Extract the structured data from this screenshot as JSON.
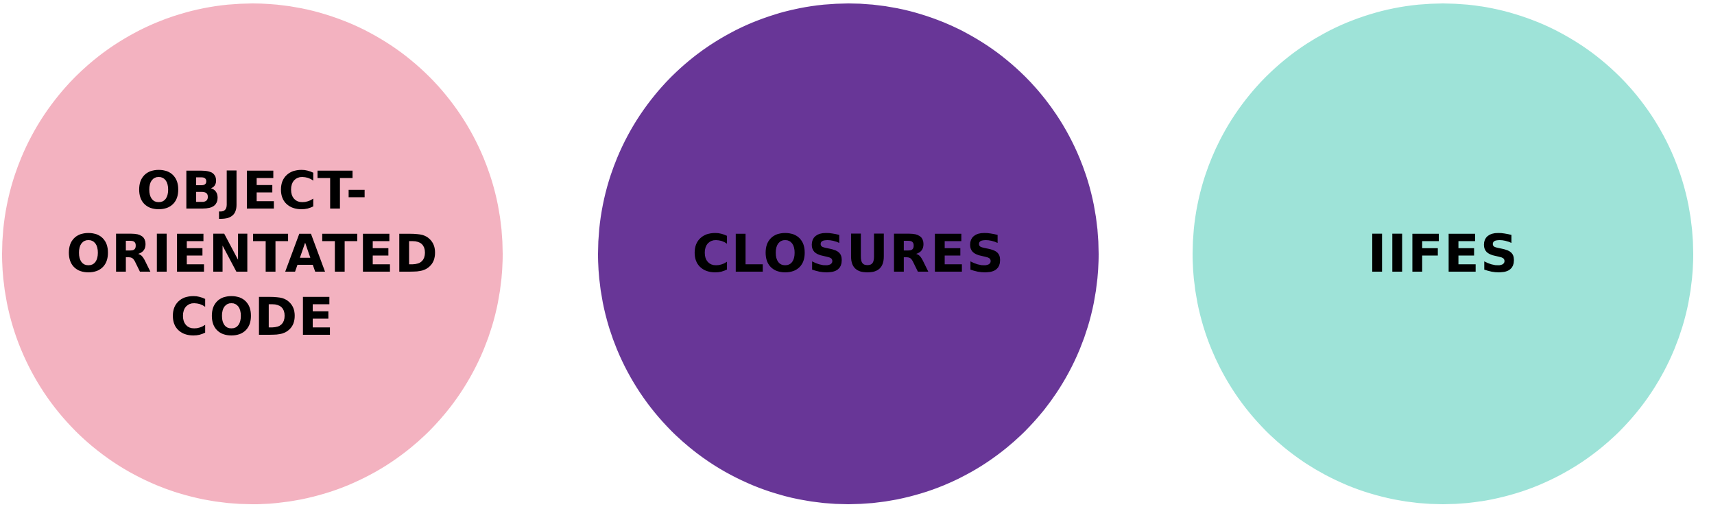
{
  "circles": [
    {
      "lines": [
        "OBJECT-",
        "ORIENTATED",
        "CODE"
      ],
      "color": "#F3B2C0"
    },
    {
      "lines": [
        "CLOSURES"
      ],
      "color": "#683697"
    },
    {
      "lines": [
        "IIFES"
      ],
      "color": "#9EE3D8"
    }
  ]
}
